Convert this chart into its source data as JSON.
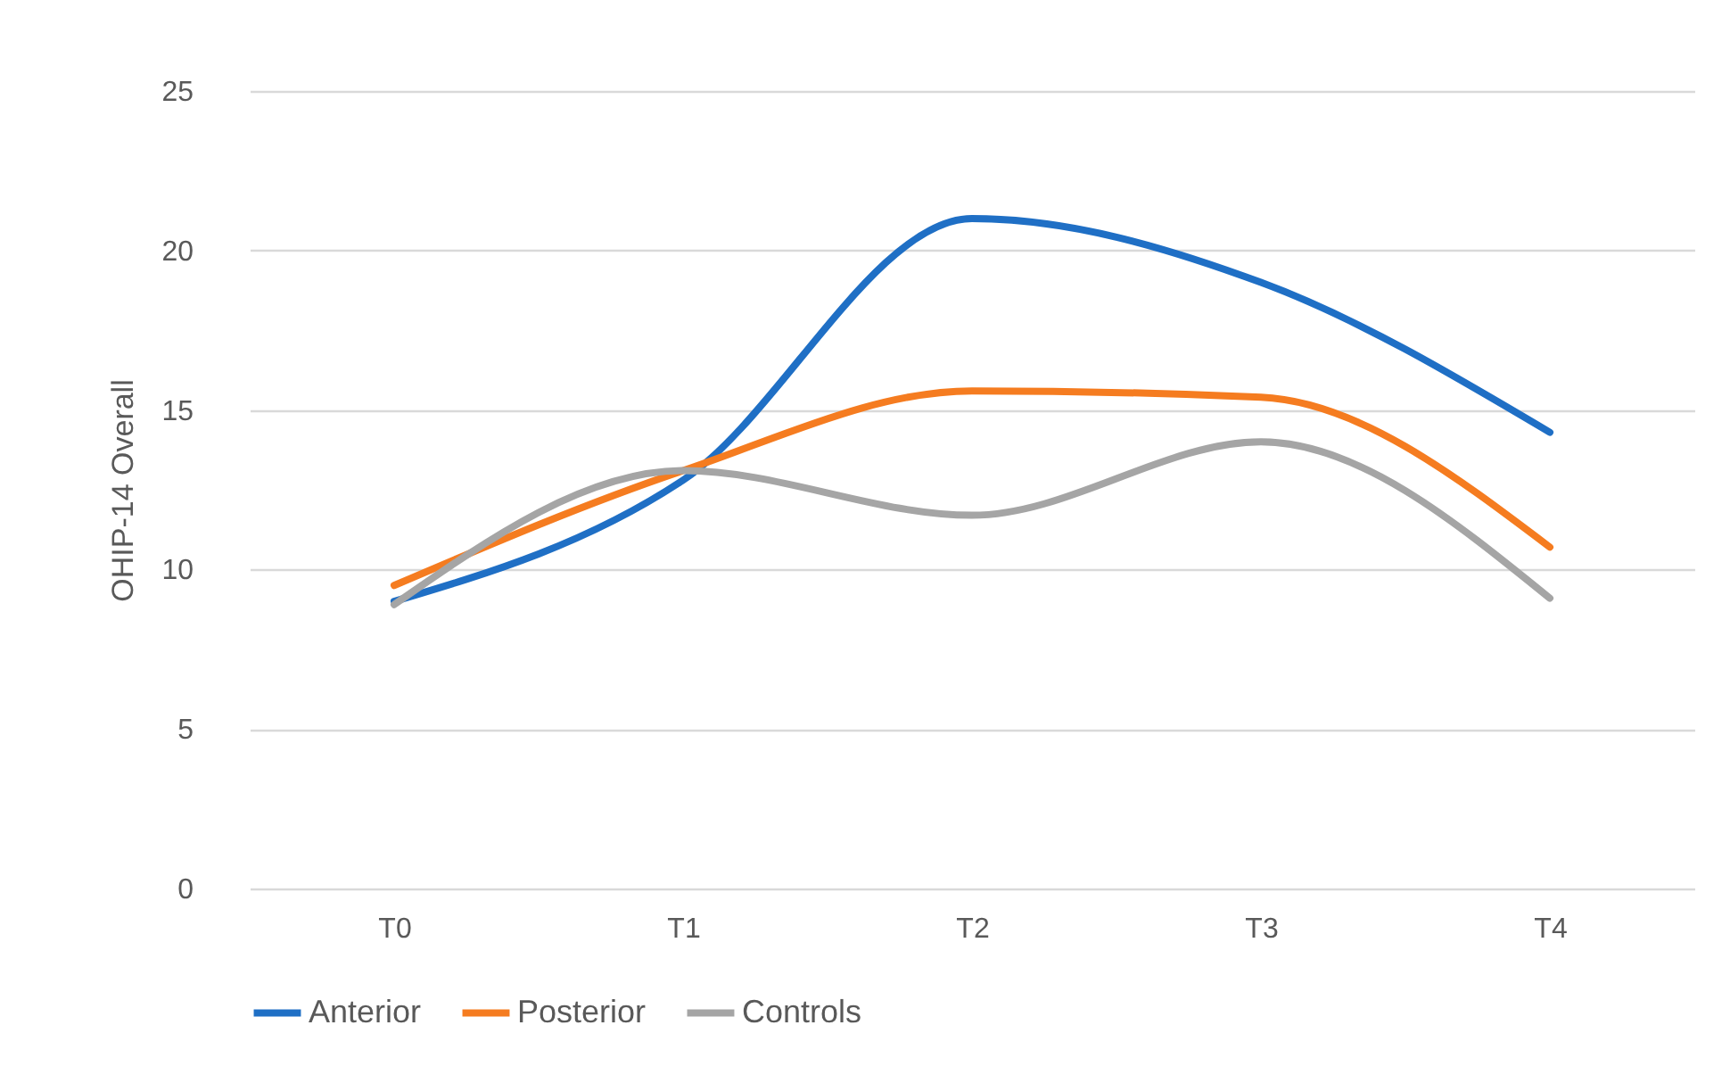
{
  "chart_data": {
    "type": "line",
    "ylabel": "OHIP-14 Overall",
    "categories": [
      "T0",
      "T1",
      "T2",
      "T3",
      "T4"
    ],
    "series": [
      {
        "name": "Anterior",
        "color": "#1f6fc5",
        "values": [
          9.0,
          12.8,
          21.0,
          19.0,
          14.3
        ]
      },
      {
        "name": "Posterior",
        "color": "#f57c20",
        "values": [
          9.5,
          13.1,
          15.6,
          15.4,
          10.7
        ]
      },
      {
        "name": "Controls",
        "color": "#a5a5a5",
        "values": [
          8.9,
          13.1,
          11.7,
          14.0,
          9.1
        ]
      }
    ],
    "ylim": [
      0,
      25
    ],
    "yticks": [
      0,
      5,
      10,
      15,
      20,
      25
    ],
    "grid": "y",
    "legend": "bottom",
    "marker": "none",
    "line_style": "solid"
  }
}
